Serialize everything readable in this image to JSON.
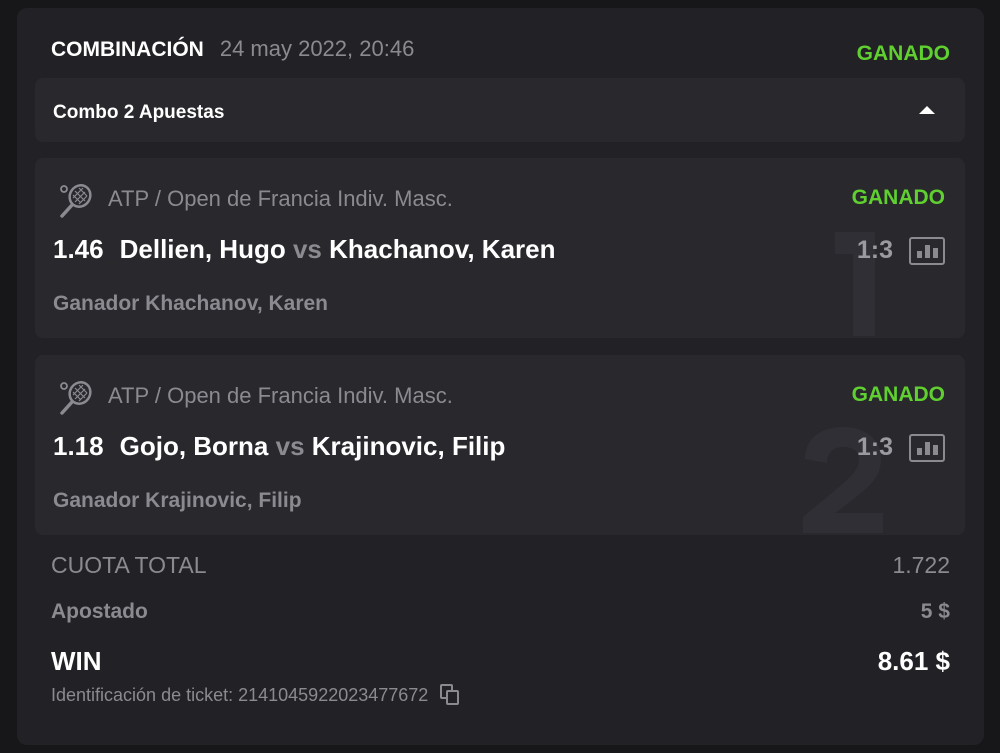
{
  "header": {
    "title": "COMBINACIÓN",
    "date": "24 may 2022, 20:46",
    "status": "GANADO"
  },
  "combo": {
    "label": "Combo 2 Apuestas",
    "caret_icon": "caret-up-icon"
  },
  "bets": [
    {
      "index": "1",
      "league": "ATP / Open de Francia Indiv. Masc.",
      "status": "GANADO",
      "odd": "1.46",
      "home": "Dellien, Hugo",
      "vs": "vs",
      "away": "Khachanov, Karen",
      "score": "1:3",
      "pick": "Ganador Khachanov, Karen"
    },
    {
      "index": "2",
      "league": "ATP / Open de Francia Indiv. Masc.",
      "status": "GANADO",
      "odd": "1.18",
      "home": "Gojo, Borna",
      "vs": "vs",
      "away": "Krajinovic, Filip",
      "score": "1:3",
      "pick": "Ganador Krajinovic, Filip"
    }
  ],
  "summary": {
    "total_odds_label": "CUOTA TOTAL",
    "total_odds": "1.722",
    "stake_label": "Apostado",
    "stake": "5 $",
    "win_label": "WIN",
    "win": "8.61 $",
    "ticket_label": "Identificación de ticket: 2141045922023477672"
  },
  "colors": {
    "won": "#5fd02f",
    "background": "#222226"
  }
}
